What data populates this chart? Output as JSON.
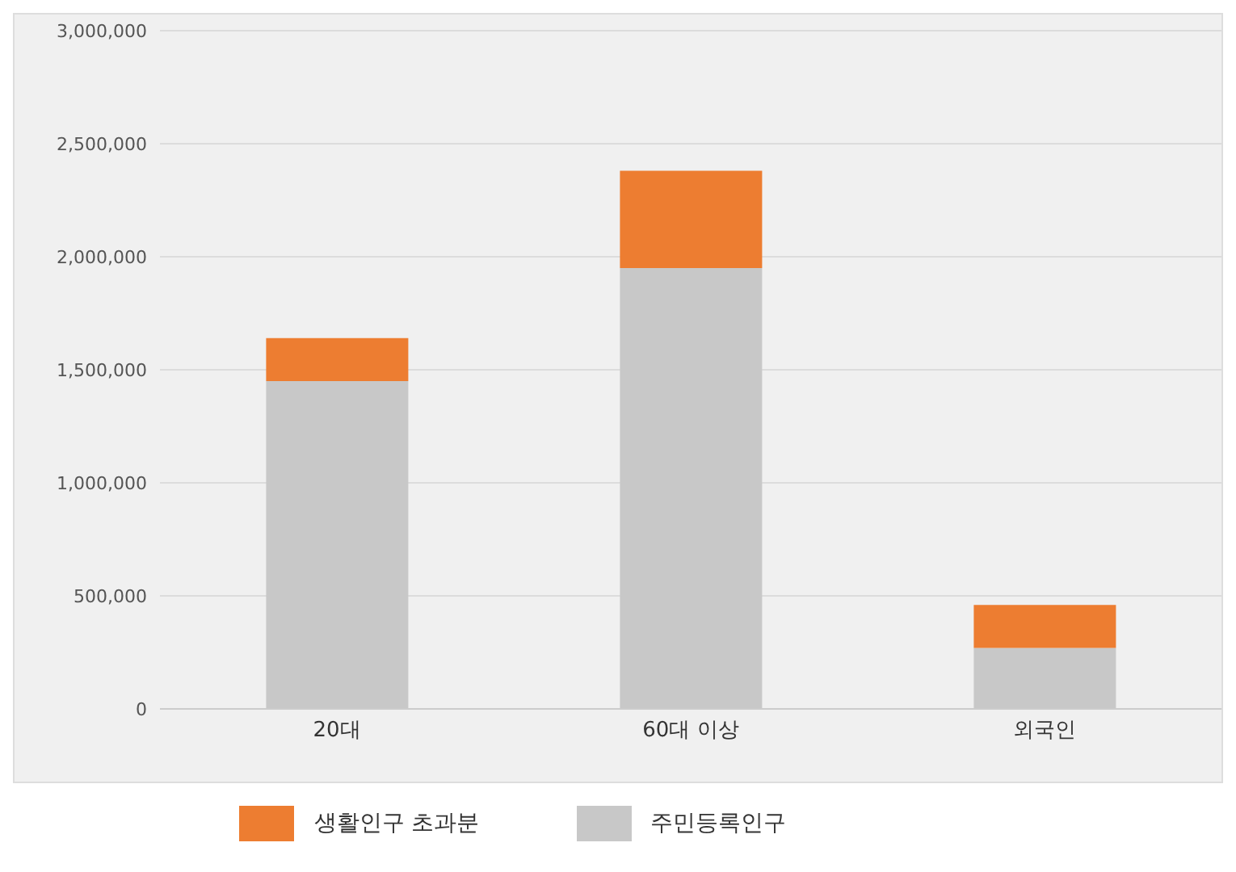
{
  "chart_data": {
    "type": "bar",
    "stacked": true,
    "categories": [
      "20대",
      "60대 이상",
      "외국인"
    ],
    "series": [
      {
        "name": "주민등록인구",
        "color": "#c8c8c8",
        "values": [
          1450000,
          1950000,
          270000
        ]
      },
      {
        "name": "생활인구 초과분",
        "color": "#ed7d31",
        "values": [
          190000,
          430000,
          190000
        ]
      }
    ],
    "ylim": [
      0,
      3000000
    ],
    "yticks": [
      0,
      {
        "value": 500000,
        "label": "500,000"
      },
      {
        "value": 1000000,
        "label": "1,000,000"
      },
      {
        "value": 1500000,
        "label": "1,500,000"
      },
      {
        "value": 2000000,
        "label": "2,000,000"
      },
      {
        "value": 2500000,
        "label": "2,500,000"
      },
      {
        "value": 3000000,
        "label": "3,000,000"
      }
    ],
    "grid": "y",
    "legend": "bottom"
  }
}
